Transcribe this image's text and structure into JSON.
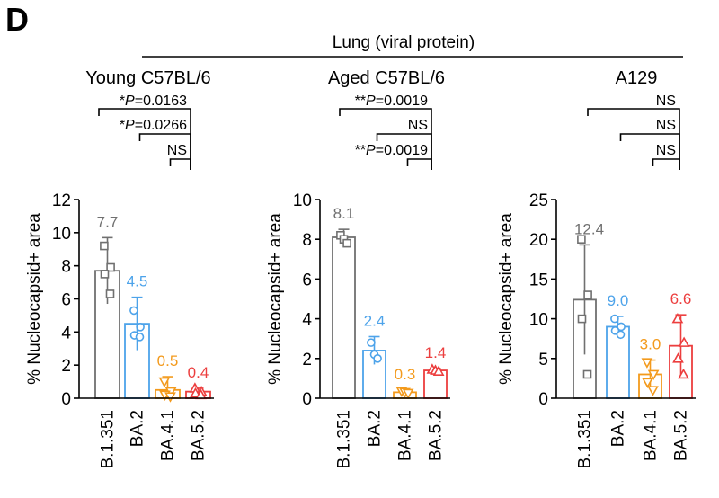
{
  "panel_label": "D",
  "header": "Lung (viral protein)",
  "colors": {
    "B.1.351": "#707070",
    "BA.2": "#4da3ea",
    "BA.4.1": "#f39a1c",
    "BA.5.2": "#ec3e3e"
  },
  "chart_data": [
    {
      "type": "bar",
      "title": "Young C57BL/6",
      "ylabel": "% Nucleocapsid+ area",
      "ylim": [
        0,
        12
      ],
      "yticks": [
        0,
        2,
        4,
        6,
        8,
        10,
        12
      ],
      "categories": [
        "B.1.351",
        "BA.2",
        "BA.4.1",
        "BA.5.2"
      ],
      "values": [
        7.7,
        4.5,
        0.5,
        0.4
      ],
      "value_labels": [
        "7.7",
        "4.5",
        "0.5",
        "0.4"
      ],
      "sd": [
        2.0,
        1.6,
        0.8,
        0.2
      ],
      "points": [
        [
          9.2,
          7.9,
          7.5,
          6.3
        ],
        [
          5.3,
          4.3,
          3.8,
          3.7
        ],
        [
          1.0,
          0.4,
          0.2,
          0.1
        ],
        [
          0.6,
          0.4,
          0.3,
          0.2
        ]
      ],
      "markers": [
        "square",
        "circle",
        "triangle-down",
        "triangle-up"
      ],
      "comparisons": [
        "*P=0.0163",
        "*P=0.0266",
        "NS"
      ]
    },
    {
      "type": "bar",
      "title": "Aged C57BL/6",
      "ylabel": "% Nucleocapsid+ area",
      "ylim": [
        0,
        10
      ],
      "yticks": [
        0,
        2,
        4,
        6,
        8,
        10
      ],
      "categories": [
        "B.1.351",
        "BA.2",
        "BA.4.1",
        "BA.5.2"
      ],
      "values": [
        8.1,
        2.4,
        0.3,
        1.4
      ],
      "value_labels": [
        "8.1",
        "2.4",
        "0.3",
        "1.4"
      ],
      "sd": [
        0.4,
        0.7,
        0.1,
        0.1
      ],
      "points": [
        [
          8.2,
          8.0,
          7.8
        ],
        [
          2.8,
          2.2,
          2.0
        ],
        [
          0.35,
          0.3,
          0.25
        ],
        [
          1.45,
          1.4,
          1.35
        ]
      ],
      "markers": [
        "square",
        "circle",
        "triangle-down",
        "triangle-up"
      ],
      "comparisons": [
        "**P=0.0019",
        "NS",
        "**P=0.0019"
      ]
    },
    {
      "type": "bar",
      "title": "A129",
      "ylabel": "% Nucleocapsid+ area",
      "ylim": [
        0,
        25
      ],
      "yticks": [
        0,
        5,
        10,
        15,
        20,
        25
      ],
      "categories": [
        "B.1.351",
        "BA.2",
        "BA.4.1",
        "BA.5.2"
      ],
      "values": [
        12.4,
        9.0,
        3.0,
        6.6
      ],
      "value_labels": [
        "12.4",
        "9.0",
        "3.0",
        "6.6"
      ],
      "sd": [
        6.9,
        1.3,
        1.8,
        3.9
      ],
      "points": [
        [
          20.0,
          13.0,
          10.0,
          3.0
        ],
        [
          10.0,
          9.0,
          8.5,
          8.0
        ],
        [
          4.5,
          3.0,
          2.0,
          1.0
        ],
        [
          10.0,
          7.0,
          5.0,
          3.0
        ]
      ],
      "markers": [
        "square",
        "circle",
        "triangle-down",
        "triangle-up"
      ],
      "comparisons": [
        "NS",
        "NS",
        "NS"
      ]
    }
  ]
}
